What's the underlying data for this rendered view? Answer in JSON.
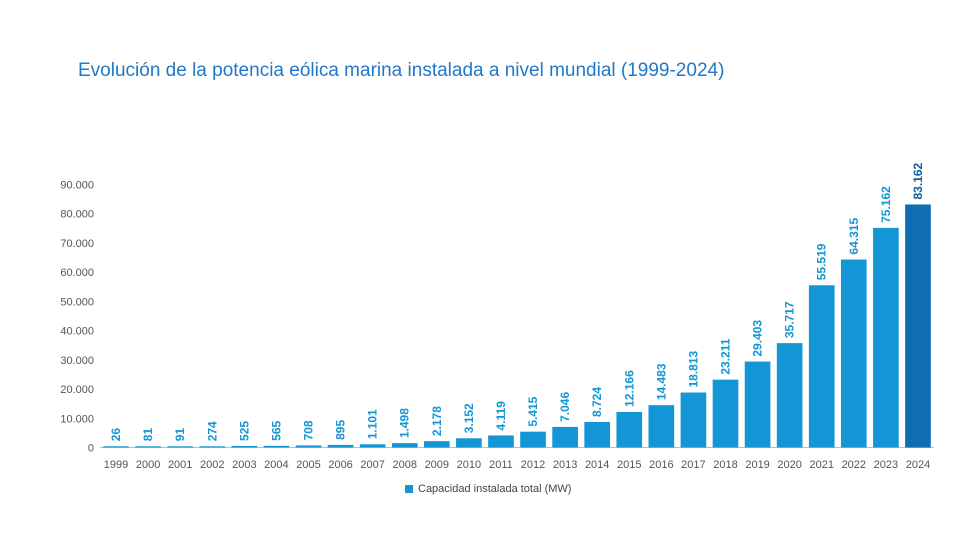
{
  "chart_data": {
    "type": "bar",
    "title": "Evolución de la potencia eólica marina instalada a nivel mundial (1999-2024)",
    "xlabel": "",
    "ylabel": "",
    "ylim": [
      0,
      90000
    ],
    "ytick_labels": [
      "0",
      "10.000",
      "20.000",
      "30.000",
      "40.000",
      "50.000",
      "60.000",
      "70.000",
      "80.000",
      "90.000"
    ],
    "grid": false,
    "legend_position": "bottom",
    "categories": [
      "1999",
      "2000",
      "2001",
      "2002",
      "2003",
      "2004",
      "2005",
      "2006",
      "2007",
      "2008",
      "2009",
      "2010",
      "2011",
      "2012",
      "2013",
      "2014",
      "2015",
      "2016",
      "2017",
      "2018",
      "2019",
      "2020",
      "2021",
      "2022",
      "2023",
      "2024"
    ],
    "series": [
      {
        "name": "Capacidad instalada total (MW)",
        "values": [
          26,
          81,
          91,
          274,
          525,
          565,
          708,
          895,
          1101,
          1498,
          2178,
          3152,
          4119,
          5415,
          7046,
          8724,
          12166,
          14483,
          18813,
          23211,
          29403,
          35717,
          55519,
          64315,
          75162,
          83162
        ],
        "data_labels": [
          "26",
          "81",
          "91",
          "274",
          "525",
          "565",
          "708",
          "895",
          "1.101",
          "1.498",
          "2.178",
          "3.152",
          "4.119",
          "5.415",
          "7.046",
          "8.724",
          "12.166",
          "14.483",
          "18.813",
          "23.211",
          "29.403",
          "35.717",
          "55.519",
          "64.315",
          "75.162",
          "83.162"
        ]
      }
    ],
    "colors": {
      "bar": "#1296d6",
      "bar_highlight": "#0e6db3",
      "label": "#1296d6",
      "label_highlight": "#0e5ea3",
      "title": "#1f78c8"
    }
  }
}
